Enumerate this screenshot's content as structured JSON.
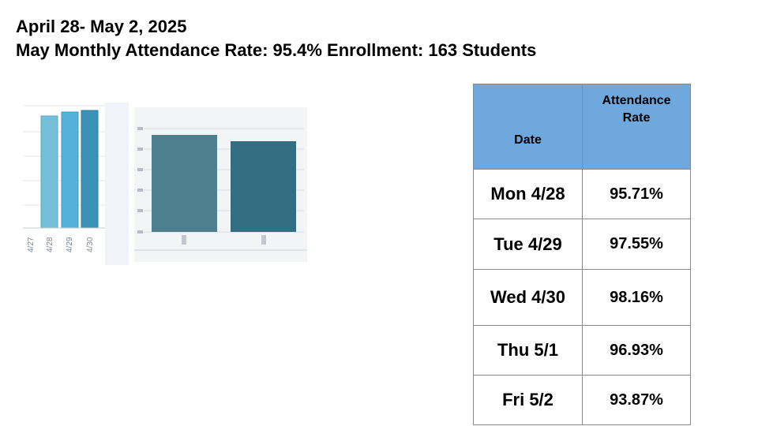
{
  "header": {
    "line1": "April 28- May 2, 2025",
    "line2": "May Monthly Attendance Rate: 95.4%  Enrollment: 163 Students"
  },
  "left_chart": {
    "tick_labels": [
      "4/27",
      "4/28",
      "4/29",
      "4/30"
    ],
    "bar_colors": [
      "#76bfd9",
      "#56b0d8",
      "#3a92b6"
    ]
  },
  "middle_chart": {
    "bar_colors": [
      "#4e7f8e",
      "#346e82"
    ]
  },
  "table": {
    "headers": {
      "date": "Date",
      "rate_line1": "Attendance",
      "rate_line2": "Rate"
    },
    "header_color": "#6fa8dc",
    "rows": [
      {
        "date": "Mon 4/28",
        "rate": "95.71%"
      },
      {
        "date": "Tue 4/29",
        "rate": "97.55%"
      },
      {
        "date": "Wed 4/30",
        "rate": "98.16%"
      },
      {
        "date": "Thu 5/1",
        "rate": "96.93%"
      },
      {
        "date": "Fri 5/2",
        "rate": "93.87%"
      }
    ]
  }
}
